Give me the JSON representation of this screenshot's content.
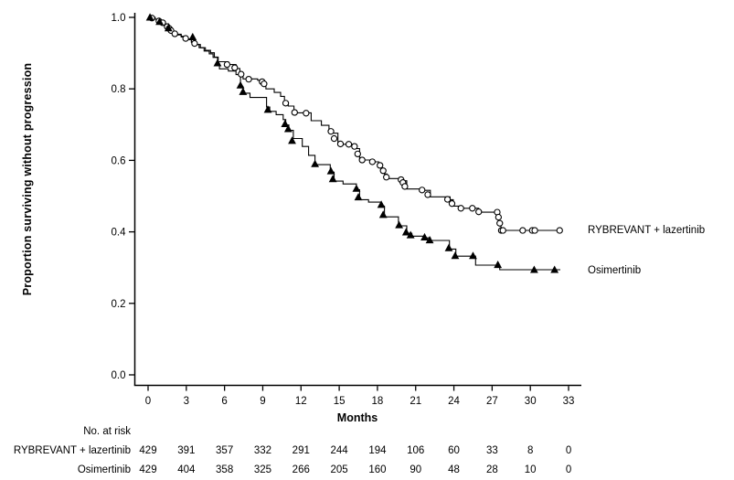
{
  "figure": {
    "colors": {
      "ink": "#000000",
      "background": "#ffffff",
      "marker_fill": "#ffffff"
    }
  },
  "chart_data": {
    "type": "line",
    "subtype": "kaplan-meier-step",
    "title": "",
    "xlabel": "Months",
    "ylabel": "Proportion surviving without progression",
    "xlim": [
      0,
      33
    ],
    "ylim": [
      0.0,
      1.0
    ],
    "x_ticks": [
      0,
      3,
      6,
      9,
      12,
      15,
      18,
      21,
      24,
      27,
      30,
      33
    ],
    "y_ticks": [
      "0.0",
      "0.2",
      "0.4",
      "0.6",
      "0.8",
      "1.0"
    ],
    "grid": false,
    "legend_position": "right-of-curve-ends",
    "series": [
      {
        "name": "RYBREVANT + lazertinib",
        "marker": "open-circle",
        "color": "#000000",
        "steps": [
          [
            0,
            1.0
          ],
          [
            0.55,
            0.995
          ],
          [
            0.9,
            0.99
          ],
          [
            1.3,
            0.982
          ],
          [
            1.6,
            0.971
          ],
          [
            1.9,
            0.961
          ],
          [
            2.2,
            0.953
          ],
          [
            2.6,
            0.947
          ],
          [
            3.0,
            0.94
          ],
          [
            3.4,
            0.932
          ],
          [
            3.7,
            0.924
          ],
          [
            4.1,
            0.915
          ],
          [
            4.5,
            0.908
          ],
          [
            4.9,
            0.901
          ],
          [
            5.2,
            0.889
          ],
          [
            5.5,
            0.876
          ],
          [
            6.3,
            0.868
          ],
          [
            6.9,
            0.857
          ],
          [
            7.2,
            0.845
          ],
          [
            7.45,
            0.828
          ],
          [
            8.6,
            0.824
          ],
          [
            9.1,
            0.818
          ],
          [
            9.25,
            0.8
          ],
          [
            9.9,
            0.79
          ],
          [
            10.4,
            0.779
          ],
          [
            10.7,
            0.763
          ],
          [
            11.0,
            0.752
          ],
          [
            11.45,
            0.733
          ],
          [
            12.8,
            0.711
          ],
          [
            13.6,
            0.698
          ],
          [
            14.2,
            0.684
          ],
          [
            14.45,
            0.676
          ],
          [
            14.9,
            0.645
          ],
          [
            16.35,
            0.633
          ],
          [
            16.6,
            0.601
          ],
          [
            17.5,
            0.596
          ],
          [
            18.1,
            0.587
          ],
          [
            18.35,
            0.573
          ],
          [
            18.55,
            0.562
          ],
          [
            18.75,
            0.549
          ],
          [
            19.9,
            0.543
          ],
          [
            20.3,
            0.52
          ],
          [
            21.65,
            0.516
          ],
          [
            22.15,
            0.498
          ],
          [
            23.7,
            0.49
          ],
          [
            23.95,
            0.472
          ],
          [
            24.6,
            0.466
          ],
          [
            25.95,
            0.455
          ],
          [
            27.45,
            0.44
          ],
          [
            27.55,
            0.42
          ],
          [
            27.7,
            0.404
          ],
          [
            32.3,
            0.404
          ]
        ],
        "censor_marks": [
          [
            0.3,
            0.998
          ],
          [
            0.85,
            0.99
          ],
          [
            1.15,
            0.985
          ],
          [
            1.5,
            0.974
          ],
          [
            1.65,
            0.969
          ],
          [
            1.8,
            0.963
          ],
          [
            2.1,
            0.954
          ],
          [
            2.95,
            0.941
          ],
          [
            3.65,
            0.927
          ],
          [
            6.2,
            0.868
          ],
          [
            6.8,
            0.859
          ],
          [
            7.3,
            0.841
          ],
          [
            7.9,
            0.827
          ],
          [
            8.95,
            0.82
          ],
          [
            9.1,
            0.814
          ],
          [
            10.8,
            0.76
          ],
          [
            11.5,
            0.734
          ],
          [
            12.4,
            0.732
          ],
          [
            14.35,
            0.681
          ],
          [
            14.6,
            0.661
          ],
          [
            15.1,
            0.646
          ],
          [
            15.75,
            0.645
          ],
          [
            16.2,
            0.639
          ],
          [
            16.45,
            0.618
          ],
          [
            16.8,
            0.601
          ],
          [
            17.6,
            0.596
          ],
          [
            18.2,
            0.586
          ],
          [
            18.45,
            0.571
          ],
          [
            18.7,
            0.553
          ],
          [
            19.85,
            0.546
          ],
          [
            20.0,
            0.538
          ],
          [
            20.15,
            0.527
          ],
          [
            21.5,
            0.517
          ],
          [
            21.95,
            0.504
          ],
          [
            23.5,
            0.491
          ],
          [
            23.85,
            0.479
          ],
          [
            24.55,
            0.466
          ],
          [
            25.45,
            0.466
          ],
          [
            25.95,
            0.456
          ],
          [
            27.4,
            0.455
          ],
          [
            27.5,
            0.441
          ],
          [
            27.6,
            0.424
          ],
          [
            27.72,
            0.404
          ],
          [
            27.85,
            0.404
          ],
          [
            29.4,
            0.404
          ],
          [
            30.15,
            0.404
          ],
          [
            30.35,
            0.404
          ],
          [
            32.3,
            0.404
          ]
        ]
      },
      {
        "name": "Osimertinib",
        "marker": "filled-triangle",
        "color": "#000000",
        "steps": [
          [
            0,
            1.0
          ],
          [
            0.55,
            0.995
          ],
          [
            0.9,
            0.987
          ],
          [
            1.3,
            0.979
          ],
          [
            1.6,
            0.969
          ],
          [
            1.9,
            0.959
          ],
          [
            2.2,
            0.951
          ],
          [
            2.6,
            0.945
          ],
          [
            3.0,
            0.938
          ],
          [
            3.4,
            0.93
          ],
          [
            3.6,
            0.924
          ],
          [
            4.0,
            0.915
          ],
          [
            4.4,
            0.906
          ],
          [
            4.8,
            0.898
          ],
          [
            5.1,
            0.888
          ],
          [
            5.45,
            0.868
          ],
          [
            5.6,
            0.856
          ],
          [
            6.3,
            0.85
          ],
          [
            6.9,
            0.84
          ],
          [
            7.25,
            0.806
          ],
          [
            7.45,
            0.788
          ],
          [
            8.0,
            0.776
          ],
          [
            9.3,
            0.749
          ],
          [
            9.55,
            0.737
          ],
          [
            10.05,
            0.728
          ],
          [
            10.6,
            0.714
          ],
          [
            10.8,
            0.699
          ],
          [
            11.05,
            0.684
          ],
          [
            11.4,
            0.661
          ],
          [
            12.1,
            0.639
          ],
          [
            12.6,
            0.614
          ],
          [
            13.1,
            0.588
          ],
          [
            14.3,
            0.567
          ],
          [
            14.6,
            0.542
          ],
          [
            15.3,
            0.534
          ],
          [
            16.35,
            0.518
          ],
          [
            16.6,
            0.49
          ],
          [
            17.3,
            0.483
          ],
          [
            18.3,
            0.472
          ],
          [
            18.55,
            0.442
          ],
          [
            19.65,
            0.417
          ],
          [
            20.3,
            0.396
          ],
          [
            20.7,
            0.388
          ],
          [
            21.7,
            0.383
          ],
          [
            22.15,
            0.376
          ],
          [
            23.65,
            0.352
          ],
          [
            24.15,
            0.332
          ],
          [
            25.7,
            0.307
          ],
          [
            27.6,
            0.294
          ],
          [
            32.35,
            0.294
          ]
        ],
        "censor_marks": [
          [
            0.15,
            1.0
          ],
          [
            0.9,
            0.988
          ],
          [
            1.6,
            0.97
          ],
          [
            3.5,
            0.945
          ],
          [
            5.45,
            0.872
          ],
          [
            7.25,
            0.81
          ],
          [
            7.45,
            0.792
          ],
          [
            9.4,
            0.742
          ],
          [
            10.75,
            0.702
          ],
          [
            11.0,
            0.688
          ],
          [
            11.3,
            0.655
          ],
          [
            13.1,
            0.59
          ],
          [
            14.35,
            0.57
          ],
          [
            14.5,
            0.548
          ],
          [
            16.35,
            0.521
          ],
          [
            16.5,
            0.497
          ],
          [
            18.3,
            0.476
          ],
          [
            18.45,
            0.448
          ],
          [
            19.7,
            0.419
          ],
          [
            20.25,
            0.399
          ],
          [
            20.6,
            0.391
          ],
          [
            21.7,
            0.385
          ],
          [
            22.1,
            0.377
          ],
          [
            23.6,
            0.355
          ],
          [
            24.1,
            0.333
          ],
          [
            25.5,
            0.333
          ],
          [
            27.45,
            0.308
          ],
          [
            30.3,
            0.294
          ],
          [
            31.9,
            0.294
          ]
        ]
      }
    ],
    "at_risk": {
      "label": "No. at risk",
      "time_points": [
        0,
        3,
        6,
        9,
        12,
        15,
        18,
        21,
        24,
        27,
        30,
        33
      ],
      "rows": [
        {
          "label": "RYBREVANT + lazertinib",
          "counts": [
            429,
            391,
            357,
            332,
            291,
            244,
            194,
            106,
            60,
            33,
            8,
            0
          ]
        },
        {
          "label": "Osimertinib",
          "counts": [
            429,
            404,
            358,
            325,
            266,
            205,
            160,
            90,
            48,
            28,
            10,
            0
          ]
        }
      ]
    }
  }
}
